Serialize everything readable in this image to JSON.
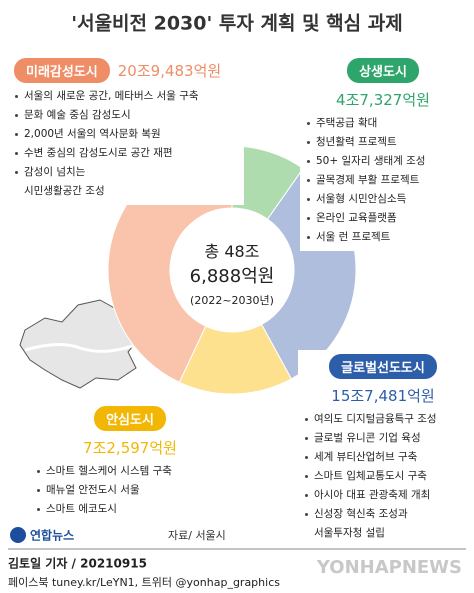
{
  "chart_data": {
    "type": "donut",
    "title": "'서울비전 2030' 투자 계획 및 핵심 과제",
    "categories": [
      "상생도시",
      "글로벌선도도시",
      "안심도시",
      "미래감성도시"
    ],
    "values": [
      47327,
      157481,
      72597,
      209483
    ],
    "value_labels": [
      "4조7,327억원",
      "15조7,481억원",
      "7조2,597억원",
      "20조9,483억원"
    ],
    "colors": [
      "#aedcae",
      "#b0bedd",
      "#fde18e",
      "#f9c3ac"
    ],
    "header_colors": [
      "#2ea56a",
      "#2d5ea9",
      "#f2b705",
      "#ef8d66"
    ],
    "items": [
      [
        "주택공급 확대",
        "청년활력 프로젝트",
        "50+ 일자리 생태계 조성",
        "골목경제 부활 프로젝트",
        "서울형 시민안심소득",
        "온라인 교육플랫폼",
        "서울 런 프로젝트"
      ],
      [
        "여의도 디지털금융특구 조성",
        "글로벌 유니콘 기업 육성",
        "세계 뷰티산업허브 구축",
        "스마트 입체교통도시 구축",
        "아시아 대표 관광축제 개최",
        "신성장 혁신축 조성과\n서울투자청 설립"
      ],
      [
        "스마트 헬스케어 시스템 구축",
        "매뉴얼 안전도시 서울",
        "스마트 에코도시"
      ],
      [
        "서울의 새로운 공간, 메타버스 서울 구축",
        "문화 예술 중심 감성도시",
        "2,000년 서울의 역사문화 복원",
        "수변 중심의 감성도시로 공간 재편",
        "감성이 넘치는\n시민생활공간 조성"
      ]
    ],
    "center_text": [
      "총 48조",
      "6,888억원",
      "(2022~2030년)"
    ],
    "source": "자료/ 서울시"
  },
  "footer": {
    "logo": "연합뉴스",
    "byline": "김토일 기자 / 20210915",
    "social": "페이스북 tuney.kr/LeYN1, 트위터 @yonhap_graphics",
    "watermark": "YONHAPNEWS"
  }
}
